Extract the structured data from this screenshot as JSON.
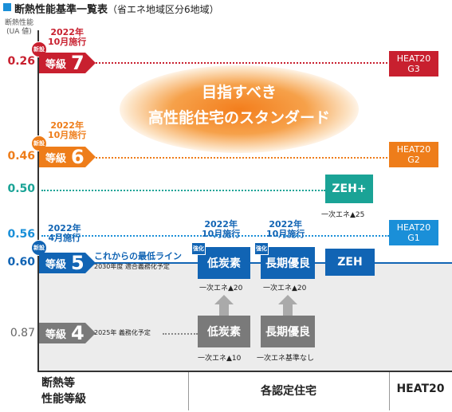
{
  "title": {
    "main": "断熱性能基準一覧表",
    "sub": "（省エネ地域区分6地域）"
  },
  "y_axis": {
    "label_line1": "断熱性能",
    "label_line2": "(UA 値)"
  },
  "values": {
    "v026": "0.26",
    "v046": "0.46",
    "v050": "0.50",
    "v056": "0.56",
    "v060": "0.60",
    "v087": "0.87"
  },
  "badge": "新設",
  "grades": {
    "g7": {
      "label": "等級",
      "num": "7",
      "date1": "2022年",
      "date2": "10月施行"
    },
    "g6": {
      "label": "等級",
      "num": "6",
      "date1": "2022年",
      "date2": "10月施行"
    },
    "g5": {
      "label": "等級",
      "num": "5",
      "date1": "2022年",
      "date2": "4月施行",
      "note1": "これからの最低ライン",
      "note2": "2030年度 適合義務化予定"
    },
    "g4": {
      "label": "等級",
      "num": "4",
      "note": "2025年 義務化予定"
    }
  },
  "heat20": {
    "g3_1": "HEAT20",
    "g3_2": "G3",
    "g2_1": "HEAT20",
    "g2_2": "G2",
    "g1_1": "HEAT20",
    "g1_2": "G1"
  },
  "center_text": {
    "line1": "目指すべき",
    "line2": "高性能住宅のスタンダード"
  },
  "certs": {
    "zehplus": "ZEH+",
    "zehplus_note": "一次エネ▲25",
    "zeh": "ZEH",
    "lowcarbon_top": "低炭素",
    "lowcarbon_tag": "強化",
    "lowcarbon_date1": "2022年",
    "lowcarbon_date2": "10月施行",
    "lowcarbon_note": "一次エネ▲20",
    "longterm_top": "長期優良",
    "longterm_tag": "強化",
    "longterm_date1": "2022年",
    "longterm_date2": "10月施行",
    "longterm_note": "一次エネ▲20",
    "lowcarbon_bottom": "低炭素",
    "lowcarbon_bottom_note": "一次エネ▲10",
    "longterm_bottom": "長期優良",
    "longterm_bottom_note": "一次エネ基準なし"
  },
  "footer": {
    "col1_line1": "断熱等",
    "col1_line2": "性能等級",
    "col2": "各認定住宅",
    "col3": "HEAT20"
  },
  "colors": {
    "red": "#c8202f",
    "orange": "#ee7d1a",
    "teal": "#1aa396",
    "blue": "#1a8fd8",
    "darkblue": "#1164b4",
    "gray": "#7a7a7a"
  }
}
